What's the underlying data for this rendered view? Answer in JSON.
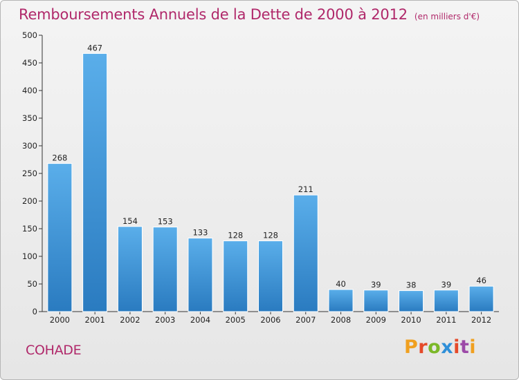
{
  "header": {
    "title": "Remboursements Annuels de la Dette de 2000 à 2012",
    "unit_note": "(en milliers d'€)"
  },
  "footer": {
    "town": "COHADE",
    "brand": "Proxiti"
  },
  "colors": {
    "title": "#b0286a",
    "bar_top": "#5aaeea",
    "bar_bottom": "#2a7bc0",
    "brand_letters": [
      "#f0a020",
      "#e54a2a",
      "#7bb828",
      "#2f8fd8",
      "#e54a2a",
      "#9c4aa8",
      "#f0a020"
    ]
  },
  "chart_data": {
    "type": "bar",
    "title": "Remboursements Annuels de la Dette de 2000 à 2012",
    "unit": "(en milliers d'€)",
    "categories": [
      "2000",
      "2001",
      "2002",
      "2003",
      "2004",
      "2005",
      "2006",
      "2007",
      "2008",
      "2009",
      "2010",
      "2011",
      "2012"
    ],
    "values": [
      268,
      467,
      154,
      153,
      133,
      128,
      128,
      211,
      40,
      39,
      38,
      39,
      46
    ],
    "ylim": [
      0,
      500
    ],
    "yticks": [
      0,
      50,
      100,
      150,
      200,
      250,
      300,
      350,
      400,
      450,
      500
    ],
    "grid": false,
    "data_labels": true
  }
}
